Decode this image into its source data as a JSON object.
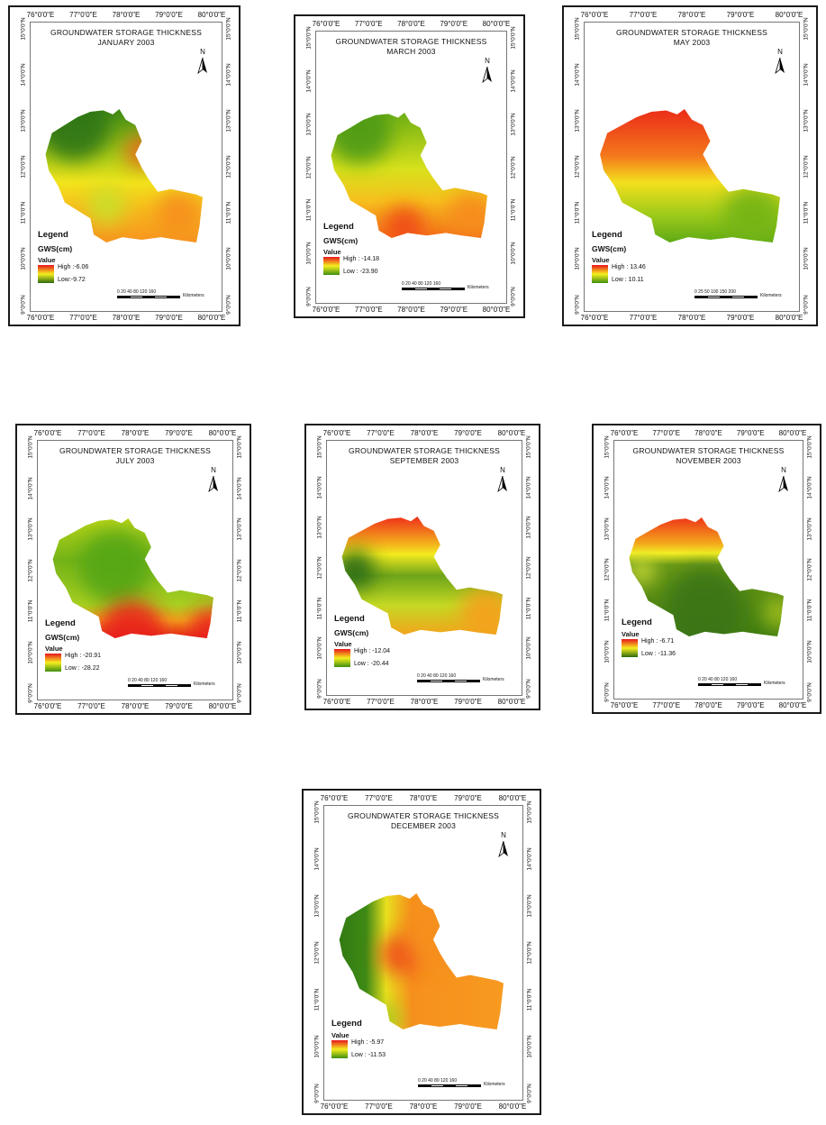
{
  "title": "GROUNDWATER STORAGE THICKNESS",
  "lon_ticks": [
    "76°0'0\"E",
    "77°0'0\"E",
    "78°0'0\"E",
    "79°0'0\"E",
    "80°0'0\"E"
  ],
  "lat_ticks": [
    "15°0'0\"N",
    "14°0'0\"N",
    "13°0'0\"N",
    "12°0'0\"N",
    "11°0'0\"N",
    "10°0'0\"N",
    "9°0'0\"N"
  ],
  "north_label": "N",
  "legend_title": "Legend",
  "legend_value_label": "Value",
  "scale_unit": "Kilometers",
  "colors": {
    "high": "#e8141c",
    "mid": "#f5ef1e",
    "low": "#3f8f10",
    "low_dark": "#2d6a10"
  },
  "maps": [
    {
      "period": "JANUARY 2003",
      "units": "GWS(cm)",
      "high": "High :-6.06",
      "low": "Low:-9.72",
      "scale_ticks": "0  20 40      80      120     160"
    },
    {
      "period": "MARCH 2003",
      "units": "GWS(cm)",
      "high": "High : -14.18",
      "low": "Low : -23.90",
      "scale_ticks": "0  20 40      80      120     160"
    },
    {
      "period": "MAY 2003",
      "units": "GWS(cm)",
      "high": "High : 13.46",
      "low": "Low : 10.11",
      "scale_ticks": "0   25   50         100        150       200"
    },
    {
      "period": "JULY 2003",
      "units": "GWS(cm)",
      "high": "High : -20.91",
      "low": "Low : -28.22",
      "scale_ticks": "0  20 40      80      120     160"
    },
    {
      "period": "SEPTEMBER 2003",
      "units": "GWS(cm)",
      "high": "High : -12.04",
      "low": "Low : -20.44",
      "scale_ticks": "0  20 40      80      120     160"
    },
    {
      "period": "NOVEMBER 2003",
      "units": "",
      "high": "High : -6.71",
      "low": "Low : -11.36",
      "scale_ticks": "0  20 40      80      120     160"
    },
    {
      "period": "DECEMBER 2003",
      "units": "",
      "high": "High : -5.97",
      "low": "Low : -11.53",
      "scale_ticks": "0  20 40      80      120     160"
    }
  ]
}
